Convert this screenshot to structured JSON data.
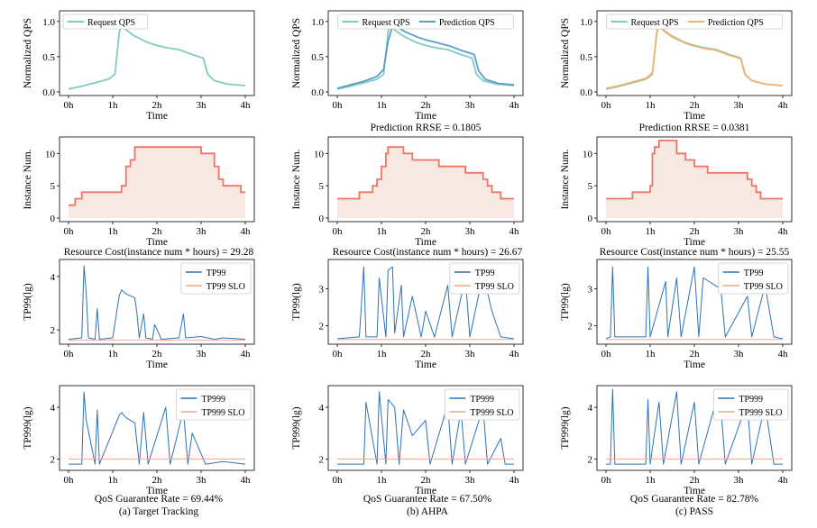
{
  "figure": {
    "x_ticks": [
      "0h",
      "1h",
      "2h",
      "3h",
      "4h"
    ],
    "x_label": "Time",
    "row_ylabels": [
      "Normalized QPS",
      "Instance Num.",
      "TP99(lg)",
      "TP999(lg)"
    ],
    "captions": [
      "(a) Target Tracking",
      "(b) AHPA",
      "(c) PASS"
    ],
    "prediction_rrse": [
      "",
      "Prediction RRSE = 0.1805",
      "Prediction RRSE = 0.0381"
    ],
    "resource_cost": [
      "Resource Cost(instance num * hours) = 29.28",
      "Resource Cost(instance num * hours) = 26.67",
      "Resource Cost(instance num * hours) = 25.55"
    ],
    "qos_rate": [
      "QoS Guarantee Rate = 69.44%",
      "QoS Guarantee Rate = 67.50%",
      "QoS Guarantee Rate = 82.78%"
    ],
    "colors": {
      "request": "#7fccc0",
      "pred_ahpa": "#5b9ec9",
      "pred_pass": "#f2b36b",
      "instance": "#f07566",
      "instance_fill": "#f7e9e2",
      "tp": "#2e73b4",
      "slo": "#f4a582"
    }
  },
  "chart_data": [
    {
      "id": "qps-tt",
      "type": "line",
      "ylabel": "Normalized QPS",
      "xlabel": "Time",
      "xlim": [
        0,
        4
      ],
      "ylim": [
        0,
        1.1
      ],
      "yticks": [
        "0.0",
        "0.5",
        "1.0"
      ],
      "ytick_values": [
        0,
        0.5,
        1.0
      ],
      "legend": {
        "position": "top-left",
        "entries": [
          "Request QPS"
        ]
      },
      "series": [
        {
          "name": "Request QPS",
          "color": "#7fccc0",
          "x": [
            0,
            0.3,
            0.6,
            0.9,
            1.05,
            1.15,
            1.2,
            1.3,
            1.5,
            1.8,
            2.0,
            2.2,
            2.5,
            2.8,
            3.05,
            3.15,
            3.3,
            3.6,
            4.0
          ],
          "y": [
            0.04,
            0.08,
            0.13,
            0.18,
            0.25,
            0.85,
            0.95,
            0.88,
            0.79,
            0.7,
            0.66,
            0.63,
            0.6,
            0.53,
            0.48,
            0.25,
            0.16,
            0.11,
            0.09
          ]
        }
      ]
    },
    {
      "id": "qps-ahpa",
      "type": "line",
      "ylabel": "Normalized QPS",
      "xlabel": "Time",
      "xlim": [
        0,
        4
      ],
      "ylim": [
        0,
        1.1
      ],
      "yticks": [
        "0.0",
        "0.5",
        "1.0"
      ],
      "ytick_values": [
        0,
        0.5,
        1.0
      ],
      "legend": {
        "position": "top",
        "entries": [
          "Request QPS",
          "Prediction QPS"
        ]
      },
      "series": [
        {
          "name": "Request QPS",
          "color": "#7fccc0",
          "x": [
            0,
            0.3,
            0.6,
            0.9,
            1.05,
            1.15,
            1.2,
            1.3,
            1.5,
            1.8,
            2.0,
            2.2,
            2.5,
            2.8,
            3.05,
            3.15,
            3.3,
            3.6,
            4.0
          ],
          "y": [
            0.04,
            0.08,
            0.13,
            0.18,
            0.25,
            0.85,
            0.95,
            0.88,
            0.79,
            0.7,
            0.66,
            0.63,
            0.6,
            0.53,
            0.48,
            0.25,
            0.16,
            0.11,
            0.09
          ]
        },
        {
          "name": "Prediction QPS",
          "color": "#5b9ec9",
          "x": [
            0,
            0.3,
            0.6,
            0.9,
            1.05,
            1.15,
            1.25,
            1.35,
            1.55,
            1.85,
            2.05,
            2.25,
            2.55,
            2.85,
            3.1,
            3.2,
            3.35,
            3.65,
            4.0
          ],
          "y": [
            0.05,
            0.1,
            0.15,
            0.22,
            0.32,
            0.72,
            0.93,
            0.92,
            0.85,
            0.77,
            0.73,
            0.7,
            0.65,
            0.58,
            0.53,
            0.3,
            0.18,
            0.12,
            0.1
          ]
        }
      ]
    },
    {
      "id": "qps-pass",
      "type": "line",
      "ylabel": "Normalized QPS",
      "xlabel": "Time",
      "xlim": [
        0,
        4
      ],
      "ylim": [
        0,
        1.1
      ],
      "yticks": [
        "0.0",
        "0.5",
        "1.0"
      ],
      "ytick_values": [
        0,
        0.5,
        1.0
      ],
      "legend": {
        "position": "top",
        "entries": [
          "Request QPS",
          "Prediction QPS"
        ]
      },
      "series": [
        {
          "name": "Request QPS",
          "color": "#7fccc0",
          "x": [
            0,
            0.3,
            0.6,
            0.9,
            1.05,
            1.15,
            1.2,
            1.3,
            1.5,
            1.8,
            2.0,
            2.2,
            2.5,
            2.8,
            3.05,
            3.15,
            3.3,
            3.6,
            4.0
          ],
          "y": [
            0.04,
            0.08,
            0.13,
            0.18,
            0.25,
            0.85,
            0.95,
            0.88,
            0.79,
            0.7,
            0.66,
            0.63,
            0.6,
            0.53,
            0.48,
            0.25,
            0.16,
            0.11,
            0.09
          ]
        },
        {
          "name": "Prediction QPS",
          "color": "#f2b36b",
          "x": [
            0,
            0.3,
            0.6,
            0.9,
            1.05,
            1.15,
            1.2,
            1.3,
            1.5,
            1.8,
            2.0,
            2.2,
            2.5,
            2.8,
            3.05,
            3.15,
            3.3,
            3.6,
            4.0
          ],
          "y": [
            0.05,
            0.09,
            0.14,
            0.19,
            0.27,
            0.83,
            0.94,
            0.87,
            0.78,
            0.69,
            0.65,
            0.62,
            0.59,
            0.52,
            0.47,
            0.24,
            0.16,
            0.11,
            0.09
          ]
        }
      ]
    },
    {
      "id": "inst-tt",
      "type": "area",
      "ylabel": "Instance Num.",
      "xlabel": "Time",
      "xlim": [
        0,
        4
      ],
      "ylim": [
        0,
        12
      ],
      "yticks": [
        "0",
        "5",
        "10"
      ],
      "ytick_values": [
        0,
        5,
        10
      ],
      "series": [
        {
          "name": "Instance Num.",
          "color": "#f07566",
          "x": [
            0,
            0.15,
            0.3,
            0.8,
            1.2,
            1.3,
            1.4,
            1.5,
            3.0,
            3.3,
            3.4,
            3.5,
            3.9,
            4.0
          ],
          "y": [
            2,
            3,
            4,
            4,
            5,
            8,
            9,
            11,
            10,
            8,
            6,
            5,
            4,
            4
          ]
        }
      ]
    },
    {
      "id": "inst-ahpa",
      "type": "area",
      "ylabel": "Instance Num.",
      "xlabel": "Time",
      "xlim": [
        0,
        4
      ],
      "ylim": [
        0,
        12
      ],
      "yticks": [
        "0",
        "5",
        "10"
      ],
      "ytick_values": [
        0,
        5,
        10
      ],
      "series": [
        {
          "name": "Instance Num.",
          "color": "#f07566",
          "x": [
            0,
            0.5,
            0.8,
            0.9,
            1.0,
            1.1,
            1.15,
            1.5,
            1.7,
            2.3,
            2.9,
            3.3,
            3.4,
            3.5,
            3.6,
            3.7,
            4.0
          ],
          "y": [
            3,
            4,
            5,
            6,
            8,
            10,
            11,
            10,
            9,
            8,
            7,
            6,
            5,
            4,
            4,
            3,
            3
          ]
        }
      ]
    },
    {
      "id": "inst-pass",
      "type": "area",
      "ylabel": "Instance Num.",
      "xlabel": "Time",
      "xlim": [
        0,
        4
      ],
      "ylim": [
        0,
        12
      ],
      "yticks": [
        "0",
        "5",
        "10"
      ],
      "ytick_values": [
        0,
        5,
        10
      ],
      "series": [
        {
          "name": "Instance Num.",
          "color": "#f07566",
          "x": [
            0,
            0.6,
            1.0,
            1.05,
            1.1,
            1.2,
            1.6,
            1.8,
            2.0,
            2.3,
            3.2,
            3.3,
            3.4,
            3.5,
            3.6,
            4.0
          ],
          "y": [
            3,
            4,
            5,
            10,
            11,
            12,
            10,
            9,
            8,
            7,
            6,
            5,
            4,
            3,
            3,
            3
          ]
        }
      ]
    },
    {
      "id": "tp99-tt",
      "type": "line",
      "ylabel": "TP99(lg)",
      "xlabel": "Time",
      "xlim": [
        0,
        4
      ],
      "ylim": [
        1.6,
        4.5
      ],
      "yticks": [
        "2",
        "4"
      ],
      "ytick_values": [
        2,
        4
      ],
      "legend": {
        "position": "top-right",
        "entries": [
          "TP99",
          "TP99 SLO"
        ]
      },
      "series": [
        {
          "name": "TP99",
          "color": "#2e73b4",
          "x": [
            0,
            0.3,
            0.35,
            0.4,
            0.45,
            0.6,
            0.65,
            0.7,
            1.0,
            1.15,
            1.2,
            1.3,
            1.5,
            1.55,
            1.6,
            1.7,
            1.75,
            1.9,
            1.95,
            2.1,
            2.5,
            2.6,
            2.65,
            3.0,
            3.3,
            3.5,
            4.0
          ],
          "y": [
            1.65,
            1.7,
            4.4,
            3.4,
            1.7,
            1.65,
            2.8,
            1.65,
            1.7,
            3.3,
            3.5,
            3.35,
            3.2,
            2.6,
            1.7,
            2.6,
            1.7,
            1.65,
            2.2,
            1.65,
            1.7,
            2.6,
            1.7,
            1.75,
            1.65,
            1.7,
            1.65
          ]
        },
        {
          "name": "TP99 SLO",
          "color": "#f4a582",
          "x": [
            0,
            4
          ],
          "y": [
            1.62,
            1.62
          ]
        }
      ]
    },
    {
      "id": "tp99-ahpa",
      "type": "line",
      "ylabel": "TP99(lg)",
      "xlabel": "Time",
      "xlim": [
        0,
        4
      ],
      "ylim": [
        1.6,
        3.7
      ],
      "yticks": [
        "2",
        "3"
      ],
      "ytick_values": [
        2,
        3
      ],
      "legend": {
        "position": "top-right",
        "entries": [
          "TP99",
          "TP99 SLO"
        ]
      },
      "series": [
        {
          "name": "TP99",
          "color": "#2e73b4",
          "x": [
            0,
            0.5,
            0.6,
            0.65,
            0.9,
            0.95,
            1.1,
            1.15,
            1.25,
            1.3,
            1.45,
            1.5,
            1.7,
            1.9,
            2.0,
            2.2,
            2.5,
            2.6,
            2.9,
            3.0,
            3.3,
            3.5,
            3.7,
            4.0
          ],
          "y": [
            1.65,
            1.7,
            3.6,
            1.7,
            1.7,
            3.3,
            1.7,
            3.5,
            3.6,
            1.8,
            3.1,
            1.7,
            2.8,
            1.7,
            2.4,
            1.7,
            3.1,
            1.7,
            3.3,
            1.7,
            3.4,
            2.4,
            1.7,
            1.65
          ]
        },
        {
          "name": "TP99 SLO",
          "color": "#f4a582",
          "x": [
            0,
            4
          ],
          "y": [
            1.63,
            1.63
          ]
        }
      ]
    },
    {
      "id": "tp99-pass",
      "type": "line",
      "ylabel": "TP99(lg)",
      "xlabel": "Time",
      "xlim": [
        0,
        4
      ],
      "ylim": [
        1.6,
        3.7
      ],
      "yticks": [
        "2",
        "3"
      ],
      "ytick_values": [
        2,
        3
      ],
      "legend": {
        "position": "top-right",
        "entries": [
          "TP99",
          "TP99 SLO"
        ]
      },
      "series": [
        {
          "name": "TP99",
          "color": "#2e73b4",
          "x": [
            0,
            0.1,
            0.15,
            0.2,
            0.9,
            0.95,
            1.0,
            1.35,
            1.4,
            1.6,
            1.7,
            2.0,
            2.1,
            2.2,
            2.6,
            2.7,
            3.2,
            3.3,
            3.6,
            3.8,
            4.0
          ],
          "y": [
            1.65,
            1.7,
            3.6,
            1.7,
            1.7,
            3.6,
            1.7,
            3.2,
            1.7,
            3.3,
            1.7,
            3.6,
            1.7,
            3.3,
            3.0,
            1.7,
            2.8,
            1.7,
            3.1,
            1.7,
            1.65
          ]
        },
        {
          "name": "TP99 SLO",
          "color": "#f4a582",
          "x": [
            0,
            4
          ],
          "y": [
            1.63,
            1.63
          ]
        }
      ]
    },
    {
      "id": "tp999-tt",
      "type": "line",
      "ylabel": "TP999(lg)",
      "xlabel": "Time",
      "xlim": [
        0,
        4
      ],
      "ylim": [
        1.7,
        4.7
      ],
      "yticks": [
        "2",
        "4"
      ],
      "ytick_values": [
        2,
        4
      ],
      "legend": {
        "position": "top-right",
        "entries": [
          "TP999",
          "TP999 SLO"
        ]
      },
      "series": [
        {
          "name": "TP999",
          "color": "#2e73b4",
          "x": [
            0,
            0.3,
            0.35,
            0.4,
            0.6,
            0.65,
            0.7,
            1.15,
            1.2,
            1.3,
            1.5,
            1.6,
            1.7,
            1.8,
            2.2,
            2.3,
            2.6,
            2.7,
            2.8,
            3.1,
            3.5,
            4.0
          ],
          "y": [
            1.8,
            1.8,
            4.6,
            3.5,
            1.8,
            3.9,
            1.8,
            3.7,
            3.8,
            3.6,
            3.4,
            1.8,
            3.8,
            1.8,
            4.0,
            1.8,
            3.9,
            1.8,
            3.0,
            1.8,
            1.9,
            1.8
          ]
        },
        {
          "name": "TP999 SLO",
          "color": "#f4a582",
          "x": [
            0,
            4
          ],
          "y": [
            2.0,
            2.0
          ]
        }
      ]
    },
    {
      "id": "tp999-ahpa",
      "type": "line",
      "ylabel": "TP999(lg)",
      "xlabel": "Time",
      "xlim": [
        0,
        4
      ],
      "ylim": [
        1.7,
        4.7
      ],
      "yticks": [
        "2",
        "4"
      ],
      "ytick_values": [
        2,
        4
      ],
      "legend": {
        "position": "top-right",
        "entries": [
          "TP999",
          "TP999 SLO"
        ]
      },
      "series": [
        {
          "name": "TP999",
          "color": "#2e73b4",
          "x": [
            0,
            0.6,
            0.65,
            0.9,
            0.95,
            1.1,
            1.15,
            1.3,
            1.4,
            1.5,
            1.7,
            2.0,
            2.1,
            2.5,
            2.6,
            2.8,
            2.9,
            3.3,
            3.4,
            3.7,
            3.8,
            4.0
          ],
          "y": [
            1.8,
            1.8,
            4.2,
            1.8,
            4.6,
            1.8,
            4.3,
            4.0,
            1.8,
            3.9,
            2.9,
            3.5,
            1.8,
            4.1,
            1.8,
            3.9,
            1.8,
            4.0,
            1.8,
            2.8,
            1.8,
            1.8
          ]
        },
        {
          "name": "TP999 SLO",
          "color": "#f4a582",
          "x": [
            0,
            4
          ],
          "y": [
            2.0,
            2.0
          ]
        }
      ]
    },
    {
      "id": "tp999-pass",
      "type": "line",
      "ylabel": "TP999(lg)",
      "xlabel": "Time",
      "xlim": [
        0,
        4
      ],
      "ylim": [
        1.7,
        4.7
      ],
      "yticks": [
        "2",
        "4"
      ],
      "ytick_values": [
        2,
        4
      ],
      "legend": {
        "position": "top-right",
        "entries": [
          "TP999",
          "TP999 SLO"
        ]
      },
      "series": [
        {
          "name": "TP999",
          "color": "#2e73b4",
          "x": [
            0,
            0.1,
            0.15,
            0.2,
            0.9,
            0.95,
            1.0,
            1.2,
            1.3,
            1.6,
            1.7,
            2.0,
            2.1,
            2.5,
            2.6,
            2.7,
            3.2,
            3.3,
            3.6,
            3.8,
            4.0
          ],
          "y": [
            1.8,
            1.8,
            4.7,
            1.8,
            1.8,
            4.3,
            1.8,
            4.2,
            1.8,
            4.6,
            1.8,
            4.2,
            1.8,
            4.3,
            4.0,
            1.8,
            4.2,
            1.8,
            4.1,
            1.8,
            1.8
          ]
        },
        {
          "name": "TP999 SLO",
          "color": "#f4a582",
          "x": [
            0,
            4
          ],
          "y": [
            2.0,
            2.0
          ]
        }
      ]
    }
  ]
}
